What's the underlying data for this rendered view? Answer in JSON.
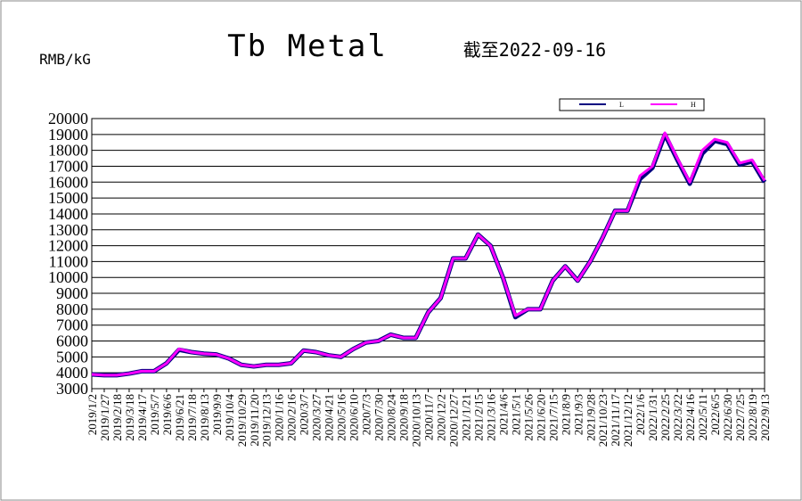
{
  "chart_data": {
    "type": "line",
    "title": "Tb Metal",
    "subtitle": "截至2022-09-16",
    "y_label": "RMB/kG",
    "categories": [
      "2019/1/2",
      "2019/1/27",
      "2019/2/18",
      "2019/3/18",
      "2019/4/17",
      "2019/5/7",
      "2019/6/6",
      "2019/6/21",
      "2019/7/18",
      "2019/8/13",
      "2019/9/9",
      "2019/10/4",
      "2019/10/29",
      "2019/11/20",
      "2019/12/13",
      "2020/1/16",
      "2020/2/16",
      "2020/3/7",
      "2020/3/27",
      "2020/4/21",
      "2020/5/16",
      "2020/6/10",
      "2020/7/3",
      "2020/7/30",
      "2020/8/24",
      "2020/9/18",
      "2020/10/13",
      "2020/11/7",
      "2020/12/2",
      "2020/12/27",
      "2021/1/21",
      "2021/2/15",
      "2021/3/16",
      "2021/4/6",
      "2021/5/1",
      "2021/5/26",
      "2021/6/20",
      "2021/7/15",
      "2021/8/9",
      "2021/9/3",
      "2021/9/28",
      "2021/10/23",
      "2021/11/17",
      "2021/12/12",
      "2022/1/6",
      "2022/1/31",
      "2022/2/25",
      "2022/3/22",
      "2022/4/16",
      "2022/5/11",
      "2022/6/5",
      "2022/6/30",
      "2022/7/25",
      "2022/8/19",
      "2022/9/13"
    ],
    "series": [
      {
        "name": "L",
        "color": "#000080",
        "values": [
          3900,
          3850,
          3850,
          3950,
          4100,
          4100,
          4600,
          5450,
          5300,
          5200,
          5150,
          4900,
          4500,
          4400,
          4500,
          4500,
          4600,
          5400,
          5300,
          5100,
          5000,
          5500,
          5900,
          6000,
          6400,
          6200,
          6200,
          7800,
          8700,
          11200,
          11200,
          12700,
          12000,
          10000,
          7500,
          8000,
          8000,
          9800,
          10700,
          9800,
          11000,
          12500,
          14200,
          14200,
          16200,
          16900,
          19000,
          17400,
          15900,
          17800,
          18600,
          18400,
          17100,
          17300,
          16000
        ]
      },
      {
        "name": "H",
        "color": "#ff00ff",
        "values": [
          3900,
          3850,
          3850,
          3950,
          4100,
          4100,
          4600,
          5500,
          5300,
          5200,
          5150,
          4900,
          4500,
          4400,
          4500,
          4500,
          4600,
          5400,
          5300,
          5100,
          5000,
          5500,
          5900,
          6000,
          6400,
          6200,
          6200,
          7800,
          8700,
          11200,
          11200,
          12700,
          12000,
          10000,
          7600,
          8000,
          8000,
          9800,
          10700,
          9800,
          11000,
          12500,
          14200,
          14200,
          16400,
          17000,
          19100,
          17500,
          16000,
          18000,
          18700,
          18500,
          17200,
          17400,
          16100
        ]
      }
    ],
    "ylim": [
      3000,
      20000
    ],
    "yticks": [
      3000,
      4000,
      5000,
      6000,
      7000,
      8000,
      9000,
      10000,
      11000,
      12000,
      13000,
      14000,
      15000,
      16000,
      17000,
      18000,
      19000,
      20000
    ],
    "grid": true
  }
}
